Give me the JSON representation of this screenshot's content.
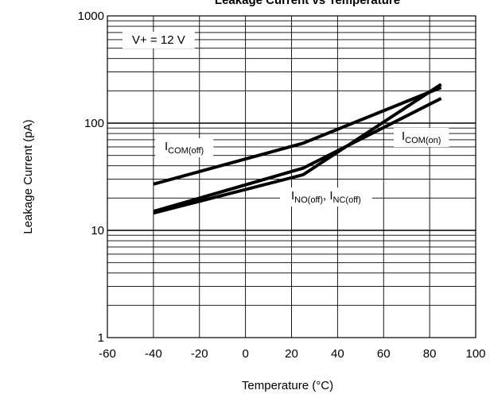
{
  "chart_data": {
    "type": "line",
    "title": "Leakage Current vs Temperature",
    "xlabel": "Temperature (°C)",
    "ylabel": "Leakage Current (pA)",
    "xlim": [
      -60,
      100
    ],
    "ylim": [
      1,
      1000
    ],
    "yscale": "log",
    "grid": true,
    "x_ticks": [
      "-60",
      "-40",
      "-20",
      "0",
      "20",
      "40",
      "60",
      "80",
      "100"
    ],
    "y_ticks": [
      "1",
      "10",
      "100",
      "1000"
    ],
    "condition_label": "V+ = 12 V",
    "annotations": {
      "com_off": {
        "main": "I",
        "sub": "COM(off)"
      },
      "com_on": {
        "main": "I",
        "sub": "COM(on)"
      },
      "no_nc": {
        "main1": "I",
        "sub1": "NO(off)",
        "sep": ", ",
        "main2": "I",
        "sub2": "NC(off)"
      }
    },
    "series": [
      {
        "x": [
          -40,
          25,
          85
        ],
        "y": [
          27,
          65,
          215
        ]
      },
      {
        "x": [
          -40,
          25,
          85
        ],
        "y": [
          15,
          38,
          170
        ]
      },
      {
        "x": [
          -40,
          25,
          85
        ],
        "y": [
          14.5,
          33,
          230
        ]
      }
    ]
  }
}
